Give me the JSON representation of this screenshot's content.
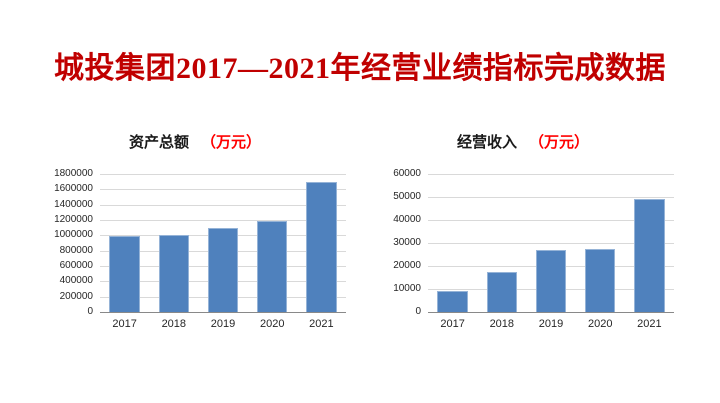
{
  "page": {
    "title": "城投集团2017—2021年经营业绩指标完成数据"
  },
  "colors": {
    "title": "#C00000",
    "unit": "#FF0000",
    "bar": "#4F81BD",
    "bar_border": "#95B3D7",
    "gridline": "#D9D9D9",
    "axis": "#898989"
  },
  "chart_data": [
    {
      "type": "bar",
      "title": "资产总额",
      "unit": "（万元）",
      "categories": [
        "2017",
        "2018",
        "2019",
        "2020",
        "2021"
      ],
      "values": [
        990000,
        1000000,
        1100000,
        1190000,
        1690000
      ],
      "ylim": [
        0,
        1800000
      ],
      "ystep": 200000,
      "grid": true,
      "legend": false,
      "xlabel": "",
      "ylabel": ""
    },
    {
      "type": "bar",
      "title": "经营收入",
      "unit": "（万元）",
      "categories": [
        "2017",
        "2018",
        "2019",
        "2020",
        "2021"
      ],
      "values": [
        9300,
        17500,
        27000,
        27400,
        49000
      ],
      "ylim": [
        0,
        60000
      ],
      "ystep": 10000,
      "grid": true,
      "legend": false,
      "xlabel": "",
      "ylabel": ""
    }
  ]
}
